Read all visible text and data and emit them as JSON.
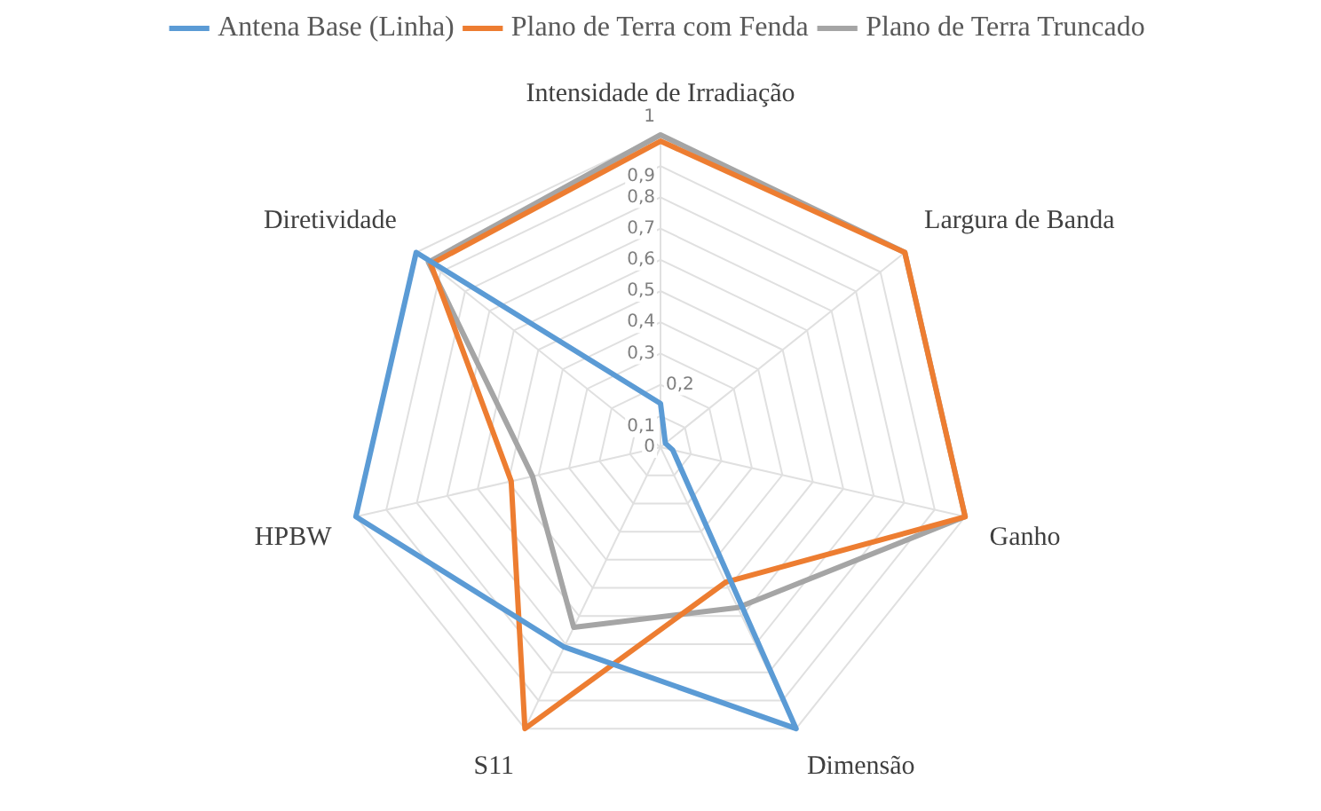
{
  "chart_data": {
    "type": "radar",
    "categories": [
      "Intensidade de Irradiação",
      "Largura de Banda",
      "Ganho",
      "Dimensão",
      "S11",
      "HPBW",
      "Diretividade"
    ],
    "series": [
      {
        "name": "Antena Base (Linha)",
        "color": "#5b9bd5",
        "values": [
          0.14,
          0.02,
          0.04,
          1,
          0.71,
          1,
          1
        ]
      },
      {
        "name": "Plano de Terra com Fenda",
        "color": "#ed7d31",
        "values": [
          0.98,
          1,
          1,
          0.48,
          1,
          0.49,
          0.94
        ]
      },
      {
        "name": "Plano de Terra Truncado",
        "color": "#a5a5a5",
        "values": [
          1,
          1,
          1,
          0.57,
          0.64,
          0.42,
          0.95
        ]
      }
    ],
    "ylim": [
      0,
      1
    ],
    "yticks": [
      {
        "value": 0,
        "label": "0"
      },
      {
        "value": 0.1,
        "label": "0,1"
      },
      {
        "value": 0.2,
        "label": "0,2"
      },
      {
        "value": 0.3,
        "label": "0,3"
      },
      {
        "value": 0.4,
        "label": "0,4"
      },
      {
        "value": 0.5,
        "label": "0,5"
      },
      {
        "value": 0.6,
        "label": "0,6"
      },
      {
        "value": 0.7,
        "label": "0,7"
      },
      {
        "value": 0.8,
        "label": "0,8"
      },
      {
        "value": 0.9,
        "label": "0,9"
      },
      {
        "value": 1,
        "label": "1"
      }
    ],
    "grid": true,
    "legend": "top",
    "marker": "none",
    "line_style": "solid"
  }
}
